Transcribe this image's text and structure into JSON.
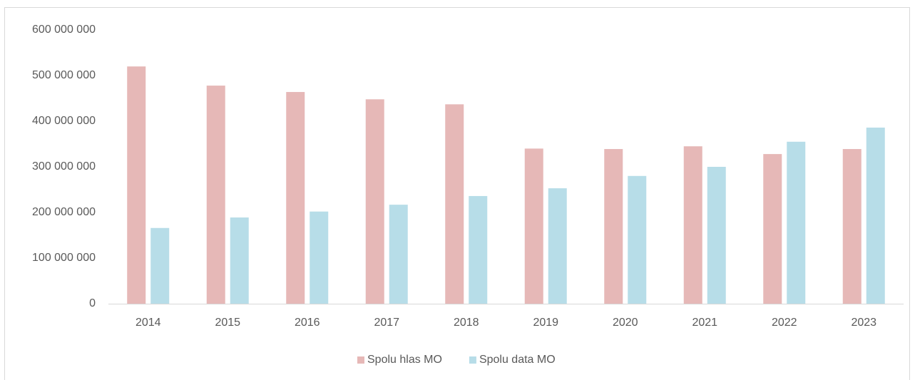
{
  "chart_data": {
    "type": "bar",
    "categories": [
      "2014",
      "2015",
      "2016",
      "2017",
      "2018",
      "2019",
      "2020",
      "2021",
      "2022",
      "2023"
    ],
    "series": [
      {
        "name": "Spolu hlas MO",
        "color": "#e6b8b7",
        "values": [
          520000000,
          478000000,
          464000000,
          448000000,
          437000000,
          340000000,
          339000000,
          345000000,
          328000000,
          339000000
        ]
      },
      {
        "name": "Spolu data MO",
        "color": "#b7dde8",
        "values": [
          166000000,
          189000000,
          202000000,
          217000000,
          236000000,
          253000000,
          280000000,
          300000000,
          355000000,
          386000000
        ]
      }
    ],
    "ylim": [
      0,
      600000000
    ],
    "yticks": [
      0,
      {
        "value": 100000000,
        "label": "100 000 000"
      },
      {
        "value": 200000000,
        "label": "200 000 000"
      },
      {
        "value": 300000000,
        "label": "300 000 000"
      },
      {
        "value": 400000000,
        "label": "400 000 000"
      },
      {
        "value": 500000000,
        "label": "500 000 000"
      },
      {
        "value": 600000000,
        "label": "600 000 000"
      }
    ],
    "grid": false,
    "legend": "bottom"
  }
}
